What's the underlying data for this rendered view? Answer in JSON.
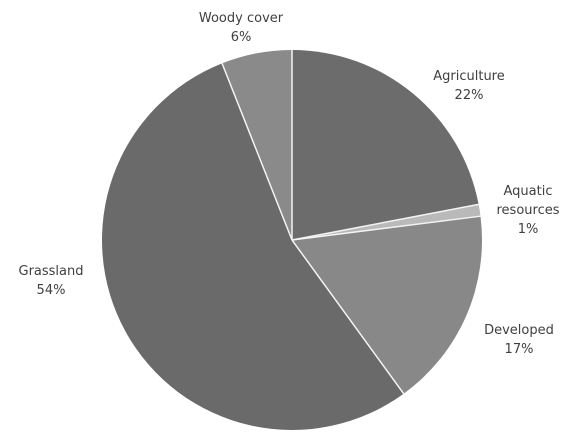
{
  "chart_data": {
    "type": "pie",
    "title": "",
    "slices": [
      {
        "label_lines": [
          "Agriculture",
          "22%"
        ],
        "value": 22,
        "color": "#6c6c6c"
      },
      {
        "label_lines": [
          "Aquatic",
          "resources",
          "1%"
        ],
        "value": 1,
        "color": "#b9b9b9"
      },
      {
        "label_lines": [
          "Developed",
          "17%"
        ],
        "value": 17,
        "color": "#888888"
      },
      {
        "label_lines": [
          "Grassland",
          "54%"
        ],
        "value": 54,
        "color": "#6a6a6a"
      },
      {
        "label_lines": [
          "Woody cover",
          "6%"
        ],
        "value": 6,
        "color": "#8a8a8a"
      }
    ],
    "start_angle": "12 o'clock",
    "direction": "clockwise"
  }
}
